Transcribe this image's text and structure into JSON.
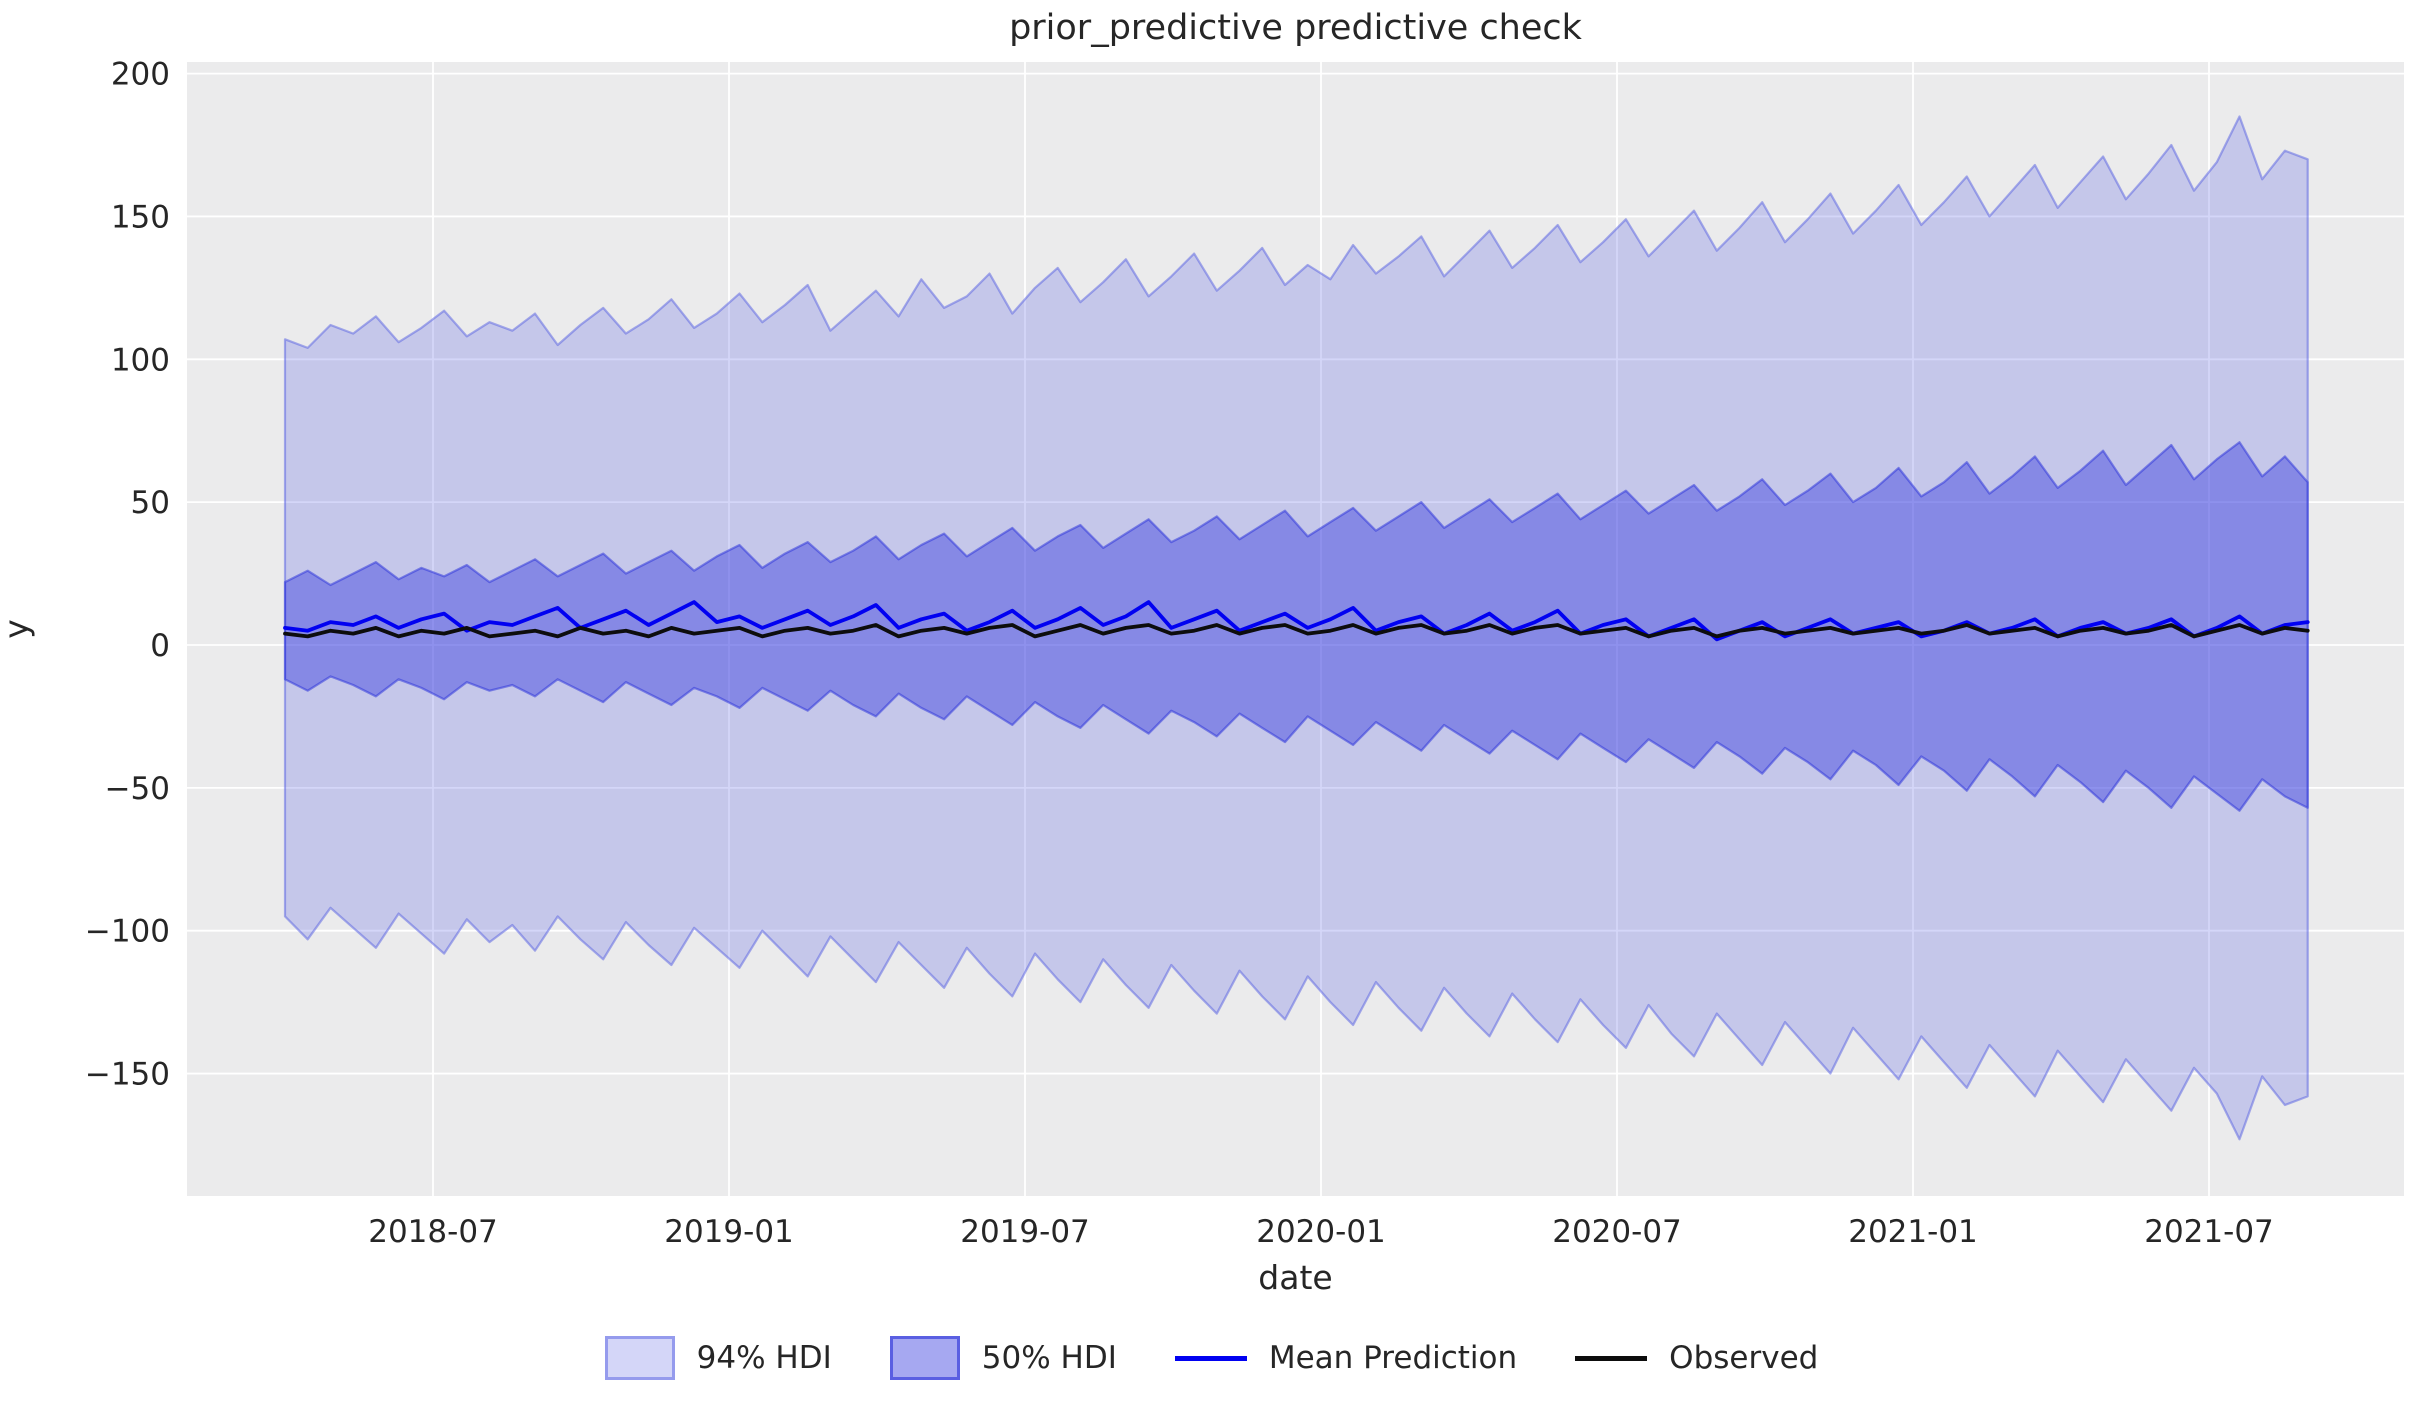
{
  "chart": {
    "title": "prior_predictive predictive check",
    "xlabel": "date",
    "ylabel": "y"
  },
  "legend": {
    "hdi94_label": "94% HDI",
    "hdi50_label": "50% HDI",
    "mean_label": "Mean Prediction",
    "observed_label": "Observed"
  },
  "colors": {
    "axes_background": "#ebebec",
    "grid": "#ffffff",
    "hdi94_fill": "rgba(99,107,229,0.28)",
    "hdi94_edge": "rgba(85,95,226,0.5)",
    "hdi50_fill": "rgba(58,63,224,0.45)",
    "hdi50_edge": "rgba(40,47,217,0.5)",
    "mean_line": "#0101f1",
    "observed_line": "#0d0d0d",
    "text": "#262626"
  },
  "chart_data": {
    "type": "line",
    "title": "prior_predictive predictive check",
    "xlabel": "date",
    "ylabel": "y",
    "grid": true,
    "legend_position": "below",
    "x_start": "2018-04",
    "x_end": "2021-09",
    "x_domain_months": [
      -3,
      38
    ],
    "n_points": 90,
    "xticks": [
      {
        "label": "2018-07",
        "m": 0
      },
      {
        "label": "2019-01",
        "m": 6
      },
      {
        "label": "2019-07",
        "m": 12
      },
      {
        "label": "2020-01",
        "m": 18
      },
      {
        "label": "2020-07",
        "m": 24
      },
      {
        "label": "2021-01",
        "m": 30
      },
      {
        "label": "2021-07",
        "m": 36
      }
    ],
    "yticks": [
      200,
      150,
      100,
      50,
      0,
      -50,
      -100,
      -150
    ],
    "ylim": [
      -193,
      204
    ],
    "series": [
      {
        "name": "94% HDI upper",
        "values": [
          107,
          104,
          112,
          109,
          115,
          106,
          111,
          117,
          108,
          113,
          110,
          116,
          105,
          112,
          118,
          109,
          114,
          121,
          111,
          116,
          123,
          113,
          119,
          126,
          110,
          117,
          124,
          115,
          128,
          118,
          122,
          130,
          116,
          125,
          132,
          120,
          127,
          135,
          122,
          129,
          137,
          124,
          131,
          139,
          126,
          133,
          128,
          140,
          130,
          136,
          143,
          129,
          137,
          145,
          132,
          139,
          147,
          134,
          141,
          149,
          136,
          144,
          152,
          138,
          146,
          155,
          141,
          149,
          158,
          144,
          152,
          161,
          147,
          155,
          164,
          150,
          159,
          168,
          153,
          162,
          171,
          156,
          165,
          175,
          159,
          169,
          185,
          163,
          173,
          170
        ]
      },
      {
        "name": "94% HDI lower",
        "values": [
          -95,
          -103,
          -92,
          -99,
          -106,
          -94,
          -101,
          -108,
          -96,
          -104,
          -98,
          -107,
          -95,
          -103,
          -110,
          -97,
          -105,
          -112,
          -99,
          -106,
          -113,
          -100,
          -108,
          -116,
          -102,
          -110,
          -118,
          -104,
          -112,
          -120,
          -106,
          -115,
          -123,
          -108,
          -117,
          -125,
          -110,
          -119,
          -127,
          -112,
          -121,
          -129,
          -114,
          -123,
          -131,
          -116,
          -125,
          -133,
          -118,
          -127,
          -135,
          -120,
          -129,
          -137,
          -122,
          -131,
          -139,
          -124,
          -133,
          -141,
          -126,
          -136,
          -144,
          -129,
          -138,
          -147,
          -132,
          -141,
          -150,
          -134,
          -143,
          -152,
          -137,
          -146,
          -155,
          -140,
          -149,
          -158,
          -142,
          -151,
          -160,
          -145,
          -154,
          -163,
          -148,
          -157,
          -173,
          -151,
          -161,
          -158
        ]
      },
      {
        "name": "50% HDI upper",
        "values": [
          22,
          26,
          21,
          25,
          29,
          23,
          27,
          24,
          28,
          22,
          26,
          30,
          24,
          28,
          32,
          25,
          29,
          33,
          26,
          31,
          35,
          27,
          32,
          36,
          29,
          33,
          38,
          30,
          35,
          39,
          31,
          36,
          41,
          33,
          38,
          42,
          34,
          39,
          44,
          36,
          40,
          45,
          37,
          42,
          47,
          38,
          43,
          48,
          40,
          45,
          50,
          41,
          46,
          51,
          43,
          48,
          53,
          44,
          49,
          54,
          46,
          51,
          56,
          47,
          52,
          58,
          49,
          54,
          60,
          50,
          55,
          62,
          52,
          57,
          64,
          53,
          59,
          66,
          55,
          61,
          68,
          56,
          63,
          70,
          58,
          65,
          71,
          59,
          66,
          57
        ]
      },
      {
        "name": "50% HDI lower",
        "values": [
          -12,
          -16,
          -11,
          -14,
          -18,
          -12,
          -15,
          -19,
          -13,
          -16,
          -14,
          -18,
          -12,
          -16,
          -20,
          -13,
          -17,
          -21,
          -15,
          -18,
          -22,
          -15,
          -19,
          -23,
          -16,
          -21,
          -25,
          -17,
          -22,
          -26,
          -18,
          -23,
          -28,
          -20,
          -25,
          -29,
          -21,
          -26,
          -31,
          -23,
          -27,
          -32,
          -24,
          -29,
          -34,
          -25,
          -30,
          -35,
          -27,
          -32,
          -37,
          -28,
          -33,
          -38,
          -30,
          -35,
          -40,
          -31,
          -36,
          -41,
          -33,
          -38,
          -43,
          -34,
          -39,
          -45,
          -36,
          -41,
          -47,
          -37,
          -42,
          -49,
          -39,
          -44,
          -51,
          -40,
          -46,
          -53,
          -42,
          -48,
          -55,
          -44,
          -50,
          -57,
          -46,
          -52,
          -58,
          -47,
          -53,
          -57
        ]
      },
      {
        "name": "Mean Prediction",
        "values": [
          6,
          5,
          8,
          7,
          10,
          6,
          9,
          11,
          5,
          8,
          7,
          10,
          13,
          6,
          9,
          12,
          7,
          11,
          15,
          8,
          10,
          6,
          9,
          12,
          7,
          10,
          14,
          6,
          9,
          11,
          5,
          8,
          12,
          6,
          9,
          13,
          7,
          10,
          15,
          6,
          9,
          12,
          5,
          8,
          11,
          6,
          9,
          13,
          5,
          8,
          10,
          4,
          7,
          11,
          5,
          8,
          12,
          4,
          7,
          9,
          3,
          6,
          9,
          2,
          5,
          8,
          3,
          6,
          9,
          4,
          6,
          8,
          3,
          5,
          8,
          4,
          6,
          9,
          3,
          6,
          8,
          4,
          6,
          9,
          3,
          6,
          10,
          4,
          7,
          8
        ]
      },
      {
        "name": "Observed",
        "values": [
          4,
          3,
          5,
          4,
          6,
          3,
          5,
          4,
          6,
          3,
          4,
          5,
          3,
          6,
          4,
          5,
          3,
          6,
          4,
          5,
          6,
          3,
          5,
          6,
          4,
          5,
          7,
          3,
          5,
          6,
          4,
          6,
          7,
          3,
          5,
          7,
          4,
          6,
          7,
          4,
          5,
          7,
          4,
          6,
          7,
          4,
          5,
          7,
          4,
          6,
          7,
          4,
          5,
          7,
          4,
          6,
          7,
          4,
          5,
          6,
          3,
          5,
          6,
          3,
          5,
          6,
          4,
          5,
          6,
          4,
          5,
          6,
          4,
          5,
          7,
          4,
          5,
          6,
          3,
          5,
          6,
          4,
          5,
          7,
          3,
          5,
          7,
          4,
          6,
          5
        ]
      }
    ]
  }
}
